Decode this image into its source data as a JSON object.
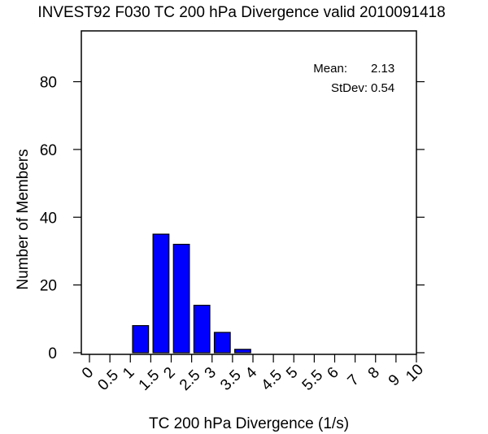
{
  "chart_data": {
    "type": "bar",
    "title": "INVEST92 F030 TC 200 hPa Divergence valid 2010091418",
    "xlabel": "TC 200 hPa Divergence (1/s)",
    "ylabel": "Number of Members",
    "x_tick_labels": [
      "0",
      "0.5",
      "1",
      "1.5",
      "2",
      "2.5",
      "3",
      "3.5",
      "4",
      "4.5",
      "5",
      "5.5",
      "6",
      "7",
      "8",
      "9",
      "10"
    ],
    "y_ticks": [
      0,
      20,
      40,
      60,
      80
    ],
    "ylim": [
      0,
      95
    ],
    "bins": [
      {
        "from": "1",
        "to": "1.5",
        "value": 8
      },
      {
        "from": "1.5",
        "to": "2",
        "value": 35
      },
      {
        "from": "2",
        "to": "2.5",
        "value": 32
      },
      {
        "from": "2.5",
        "to": "3",
        "value": 14
      },
      {
        "from": "3",
        "to": "3.5",
        "value": 6
      },
      {
        "from": "3.5",
        "to": "4",
        "value": 1
      }
    ],
    "bar_color": "#0000ff",
    "stats": [
      {
        "label": "Mean:",
        "value": "2.13"
      },
      {
        "label": "StDev:",
        "value": "0.54"
      }
    ],
    "grid": false
  }
}
